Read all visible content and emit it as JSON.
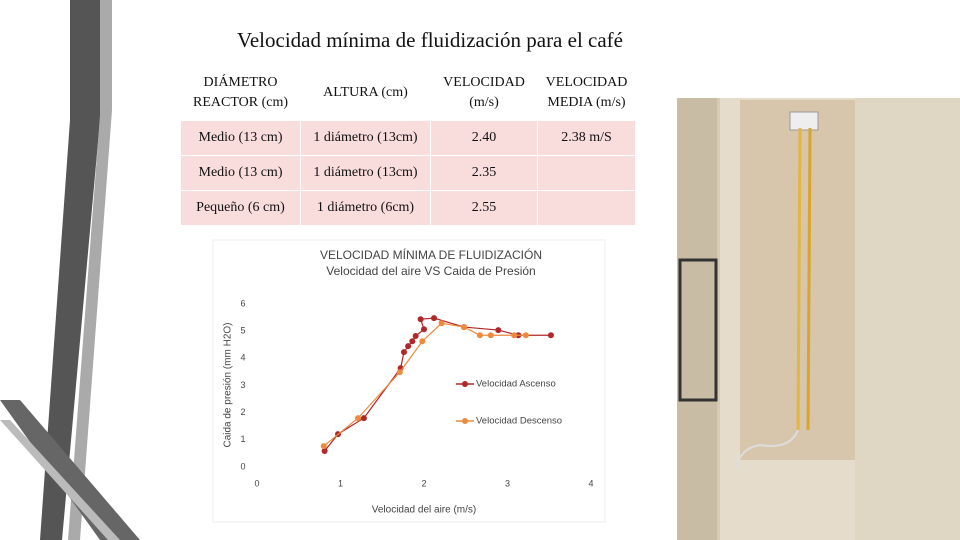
{
  "title": "Velocidad mínima de fluidización para el café",
  "table": {
    "header": [
      "DIÁMETRO REACTOR (cm)",
      "ALTURA (cm)",
      "VELOCIDAD (m/s)",
      "VELOCIDAD MEDIA (m/s)"
    ],
    "rows": [
      [
        "Medio (13 cm)",
        "1 diámetro (13cm)",
        "2.40",
        "2.38 m/S"
      ],
      [
        "Medio (13 cm)",
        "1 diámetro (13cm)",
        "2.35"
      ],
      [
        "Pequeño (6 cm)",
        "1 diámetro (6cm)",
        "2.55"
      ]
    ]
  },
  "chart_data": {
    "type": "scatter",
    "title": "VELOCIDAD MÍNIMA DE FLUIDIZACIÓN",
    "subtitle": "Velocidad del aire  VS Caida de Presión",
    "x_label": "Velocidad del aire (m/s)",
    "y_label": "Caida de presión (mm H2O)",
    "xlim": [
      0,
      4
    ],
    "xticks": [
      0,
      1,
      2,
      3,
      4
    ],
    "ylim": [
      0,
      6
    ],
    "yticks": [
      0,
      1,
      2,
      3,
      4,
      5,
      6
    ],
    "grid": false,
    "legend": "right",
    "series": [
      {
        "name": "Velocidad Ascenso",
        "color": "#b0282a",
        "x": [
          0.81,
          0.97,
          1.28,
          1.72,
          1.76,
          1.81,
          1.86,
          1.9,
          2.0,
          1.96,
          2.12,
          2.48,
          2.89,
          3.13,
          3.52
        ],
        "values": [
          0.59,
          1.21,
          1.8,
          3.64,
          4.23,
          4.45,
          4.63,
          4.82,
          5.07,
          5.44,
          5.48,
          5.15,
          5.04,
          4.85,
          4.85
        ]
      },
      {
        "name": "Velocidad Descenso",
        "color": "#ec8a3e",
        "x": [
          0.8,
          1.21,
          1.71,
          1.98,
          2.21,
          2.48,
          2.67,
          2.8,
          3.08,
          3.22
        ],
        "values": [
          0.77,
          1.8,
          3.49,
          4.63,
          5.29,
          5.15,
          4.85,
          4.85,
          4.85,
          4.85
        ]
      }
    ]
  }
}
